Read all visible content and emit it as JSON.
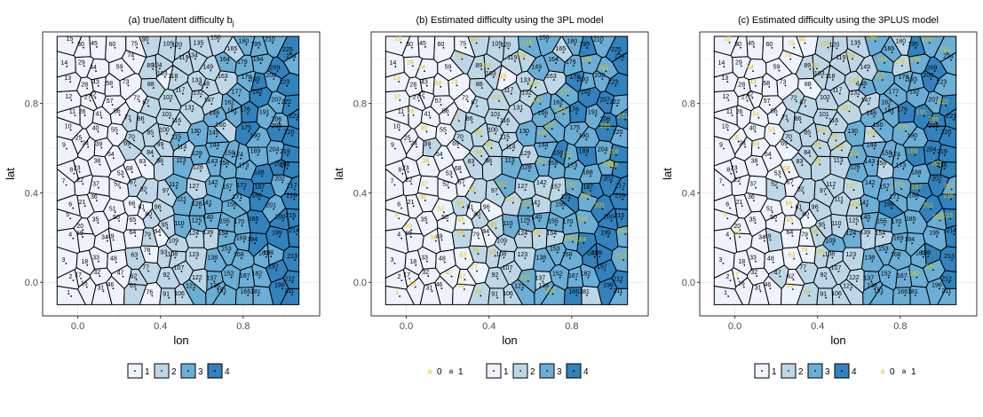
{
  "colors": {
    "level_1": "#eff3ff",
    "level_2": "#bdd7e7",
    "level_3": "#6baed6",
    "level_4": "#3182bd",
    "cell_border": "#000000",
    "grid": "#ebebeb",
    "label_plain": "#000000",
    "label_highlight": "#e6c100"
  },
  "chart_data": [
    {
      "type": "heatmap",
      "subtype": "voronoi-tessellation",
      "title": "(a) true/latent difficulty b",
      "title_subscript": "j",
      "xlabel": "lon",
      "ylabel": "lat",
      "xlim": [
        -0.17,
        1.17
      ],
      "ylim": [
        -0.15,
        1.12
      ],
      "x_ticks": [
        0.0,
        0.4,
        0.8
      ],
      "x_tick_labels": [
        "0.0",
        "0.4",
        "0.8"
      ],
      "y_ticks": [
        0.0,
        0.4,
        0.8
      ],
      "y_tick_labels": [
        "0.0",
        "0.4",
        "0.8"
      ],
      "grid": true,
      "legend_position": "bottom",
      "legend": {
        "fill_levels": [
          "1",
          "2",
          "3",
          "4"
        ]
      },
      "highlight_labels": false,
      "visible_cell_labels": [
        "15",
        "30",
        "45",
        "14",
        "29",
        "43",
        "44",
        "60",
        "90",
        "105",
        "180",
        "195",
        "210",
        "225",
        "148",
        "150",
        "223",
        "10",
        "55",
        "171",
        "200",
        "23",
        "125",
        "127",
        "8",
        "9",
        "20",
        "216",
        "213",
        "3",
        "4",
        "18",
        "30",
        "46",
        "108",
        "154",
        "198",
        "212",
        "1",
        "31",
        "61",
        "76",
        "92",
        "122",
        "121",
        "211"
      ],
      "note": "about 225 numbered Voronoi cells; fill level 1-4 increases from west to east"
    },
    {
      "type": "heatmap",
      "subtype": "voronoi-tessellation",
      "title": "(b) Estimated difficulty using the 3PL model",
      "xlabel": "lon",
      "ylabel": "lat",
      "xlim": [
        -0.17,
        1.17
      ],
      "ylim": [
        -0.15,
        1.12
      ],
      "x_ticks": [
        0.0,
        0.4,
        0.8
      ],
      "x_tick_labels": [
        "0.0",
        "0.4",
        "0.8"
      ],
      "y_ticks": [
        0.0,
        0.4,
        0.8
      ],
      "y_tick_labels": [
        "0.0",
        "0.4",
        "0.8"
      ],
      "grid": true,
      "legend_position": "bottom",
      "legend": {
        "label_levels": [
          "0",
          "1"
        ],
        "label_glyph": "a",
        "fill_levels": [
          "1",
          "2",
          "3",
          "4"
        ]
      },
      "highlight_labels": true,
      "visible_cell_labels": [
        "15",
        "30",
        "45",
        "14",
        "29",
        "43",
        "105",
        "180",
        "210",
        "225",
        "148",
        "150",
        "223",
        "10",
        "20",
        "8",
        "9",
        "216",
        "3",
        "4",
        "18",
        "46",
        "108",
        "154",
        "198",
        "212",
        "1",
        "31",
        "61",
        "76",
        "92",
        "122",
        "121",
        "211"
      ],
      "note": "cell labels coloured by label level 0 (yellow) or 1 (black)"
    },
    {
      "type": "heatmap",
      "subtype": "voronoi-tessellation",
      "title": "(c) Estimated difficulty using the 3PLUS model",
      "xlabel": "lon",
      "ylabel": "lat",
      "xlim": [
        -0.17,
        1.17
      ],
      "ylim": [
        -0.15,
        1.12
      ],
      "x_ticks": [
        0.0,
        0.4,
        0.8
      ],
      "x_tick_labels": [
        "0.0",
        "0.4",
        "0.8"
      ],
      "y_ticks": [
        0.0,
        0.4,
        0.8
      ],
      "y_tick_labels": [
        "0.0",
        "0.4",
        "0.8"
      ],
      "grid": true,
      "legend_position": "bottom",
      "legend": {
        "fill_levels": [
          "1",
          "2",
          "3",
          "4"
        ],
        "label_levels": [
          "0",
          "1"
        ],
        "label_glyph": "a"
      },
      "highlight_labels": true,
      "visible_cell_labels": [
        "15",
        "30",
        "45",
        "14",
        "29",
        "43",
        "44",
        "60",
        "90",
        "105",
        "195",
        "210",
        "225",
        "148",
        "150",
        "223",
        "10",
        "9",
        "8",
        "20",
        "216",
        "213",
        "3",
        "4",
        "18",
        "46",
        "108",
        "154",
        "198",
        "212",
        "1",
        "31",
        "61",
        "76",
        "92",
        "122",
        "121",
        "211"
      ],
      "note": "cell labels coloured by label level 0 (yellow) or 1 (black)"
    }
  ]
}
